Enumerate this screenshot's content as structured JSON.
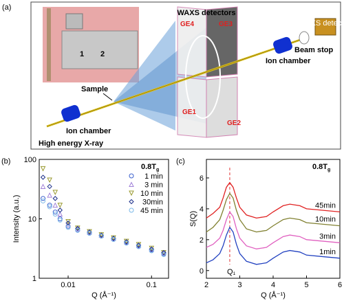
{
  "diagram": {
    "panel": "(a)",
    "waxs": "WAXS detectors",
    "ge4": "GE4",
    "ge3": "GE3",
    "ge1": "GE1",
    "ge2": "GE2",
    "sample": "Sample",
    "ion_left": "Ion chamber",
    "ion_right": "Ion chamber",
    "beam_stop": "Beam stop",
    "saxs": "SAXS detector",
    "xray": "High energy X-ray",
    "ruler": [
      "1",
      "2"
    ]
  },
  "chart_data": [
    {
      "type": "scatter",
      "panel": "(b)",
      "xlabel": "Q (Å⁻¹)",
      "ylabel": "Intensity (a.u.)",
      "xscale": "log",
      "yscale": "log",
      "xlim": [
        0.0045,
        0.16
      ],
      "ylim": [
        1,
        100
      ],
      "xticks": [
        0.01,
        0.1
      ],
      "yticks": [
        1,
        10,
        100
      ],
      "legend_title": {
        "main": "0.8T",
        "sub": "g"
      },
      "legend": "upper right",
      "x": [
        0.005,
        0.006,
        0.007,
        0.008,
        0.01,
        0.013,
        0.018,
        0.025,
        0.035,
        0.05,
        0.07,
        0.1,
        0.14
      ],
      "series": [
        {
          "name": "1 min",
          "color": "#3a5fcd",
          "marker": "circle",
          "values": [
            22,
            17,
            13,
            10,
            7.5,
            6.5,
            5.8,
            5.2,
            4.6,
            4.0,
            3.5,
            3.0,
            2.6
          ]
        },
        {
          "name": "3 min",
          "color": "#a080d8",
          "marker": "triangle-up",
          "values": [
            35,
            25,
            17,
            12,
            8,
            6.8,
            6,
            5.3,
            4.7,
            4.1,
            3.6,
            3.1,
            2.7
          ]
        },
        {
          "name": "10 min",
          "color": "#9a9a30",
          "marker": "triangle-down",
          "values": [
            70,
            45,
            28,
            17,
            9,
            7,
            6.1,
            5.4,
            4.8,
            4.2,
            3.7,
            3.2,
            2.7
          ]
        },
        {
          "name": "30min",
          "color": "#1c2f8a",
          "marker": "diamond",
          "values": [
            50,
            35,
            22,
            14,
            8.5,
            6.9,
            6,
            5.3,
            4.7,
            4.1,
            3.6,
            3.1,
            2.7
          ]
        },
        {
          "name": "45 min",
          "color": "#7ab8e8",
          "marker": "circle",
          "values": [
            20,
            16,
            12,
            9.5,
            7.2,
            6.4,
            5.7,
            5.1,
            4.5,
            3.9,
            3.4,
            2.9,
            2.5
          ]
        }
      ]
    },
    {
      "type": "line",
      "panel": "(c)",
      "xlabel": "Q (Å⁻¹)",
      "ylabel": "S(Q)",
      "xlim": [
        2,
        6
      ],
      "ylim": [
        -0.5,
        7.2
      ],
      "xticks": [
        2,
        3,
        4,
        5,
        6
      ],
      "yticks": [
        0,
        2,
        4,
        6
      ],
      "legend_title": {
        "main": "0.8T",
        "sub": "g"
      },
      "vline": {
        "x": 2.7,
        "label": "Q₁",
        "color": "#e03030"
      },
      "x": [
        2,
        2.2,
        2.4,
        2.5,
        2.6,
        2.7,
        2.8,
        2.9,
        3.0,
        3.2,
        3.5,
        3.8,
        4.0,
        4.3,
        4.5,
        4.8,
        5.0,
        5.5,
        6.0
      ],
      "series": [
        {
          "name": "1min",
          "color": "#2040c0",
          "values": [
            0.5,
            0.7,
            1.1,
            1.6,
            2.3,
            2.8,
            2.5,
            1.7,
            1.1,
            0.6,
            0.4,
            0.5,
            0.8,
            1.2,
            1.3,
            1.2,
            1.0,
            0.9,
            0.8
          ]
        },
        {
          "name": "3min",
          "color": "#e060c0",
          "values": [
            1.5,
            1.7,
            2.1,
            2.6,
            3.3,
            3.8,
            3.5,
            2.7,
            2.1,
            1.6,
            1.4,
            1.5,
            1.8,
            2.2,
            2.3,
            2.2,
            2.0,
            1.9,
            1.8
          ]
        },
        {
          "name": "10min",
          "color": "#808030",
          "values": [
            2.5,
            2.8,
            3.3,
            3.9,
            4.6,
            5.0,
            4.7,
            3.9,
            3.3,
            2.7,
            2.5,
            2.6,
            2.9,
            3.3,
            3.4,
            3.3,
            3.1,
            3.0,
            2.9
          ]
        },
        {
          "name": "45min",
          "color": "#e02020",
          "values": [
            3.4,
            3.7,
            4.1,
            4.7,
            5.4,
            5.7,
            5.4,
            4.7,
            4.1,
            3.6,
            3.4,
            3.5,
            3.8,
            4.2,
            4.3,
            4.2,
            4.0,
            3.9,
            3.8
          ]
        }
      ]
    }
  ]
}
